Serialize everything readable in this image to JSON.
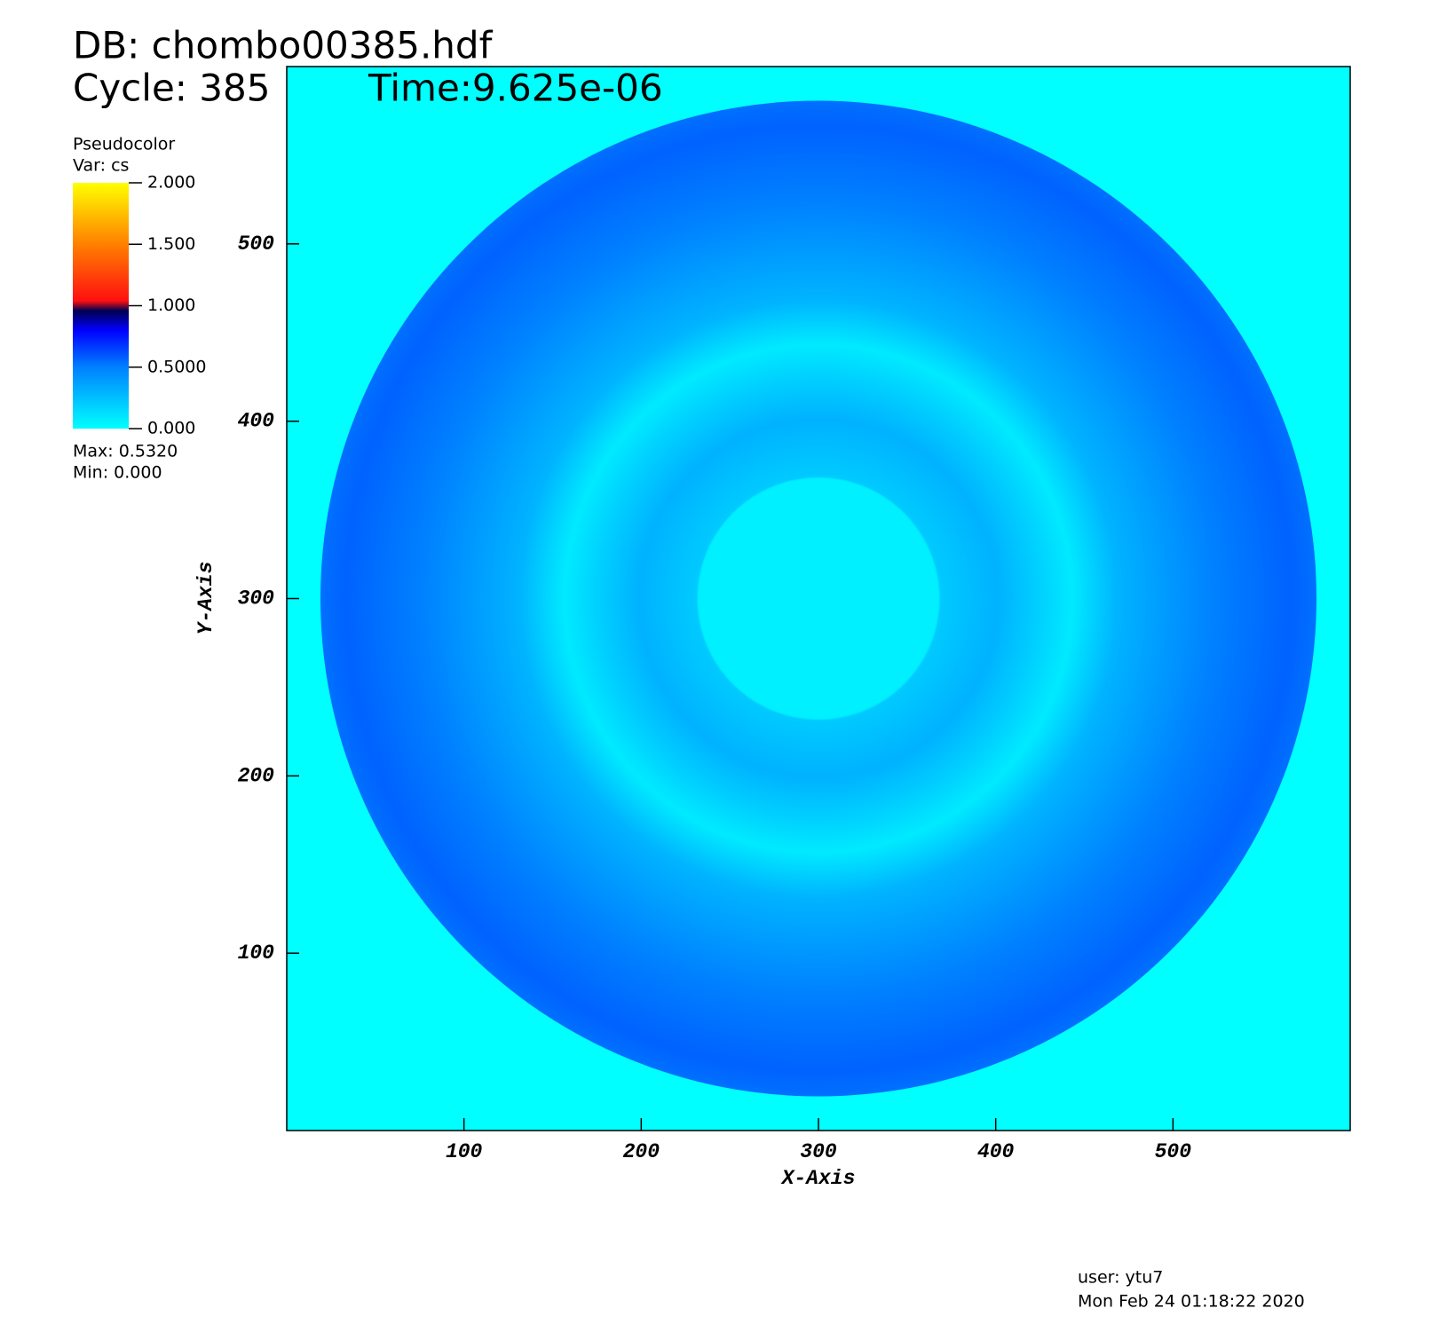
{
  "chart_data": {
    "type": "pseudocolor",
    "title": "DB: chombo00385.hdf",
    "cycle": "Cycle: 385",
    "time": "Time:9.625e-06",
    "xlabel": "X-Axis",
    "ylabel": "Y-Axis",
    "xlim": [
      0,
      600
    ],
    "ylim": [
      0,
      600
    ],
    "xticks": [
      100,
      200,
      300,
      400,
      500
    ],
    "yticks": [
      100,
      200,
      300,
      400,
      500
    ],
    "legend": {
      "title": "Pseudocolor",
      "var": "Var: cs",
      "lim": [
        0,
        2
      ],
      "ticks": [
        {
          "value": 2,
          "label": "2.000"
        },
        {
          "value": 1.5,
          "label": "1.500"
        },
        {
          "value": 1,
          "label": "1.000"
        },
        {
          "value": 0.5,
          "label": "0.5000"
        },
        {
          "value": 0,
          "label": "0.000"
        }
      ],
      "max": "Max:  0.5320",
      "min": "Min:  0.000"
    },
    "user": "user: ytu7",
    "date": "Mon Feb 24 01:18:22 2020"
  }
}
